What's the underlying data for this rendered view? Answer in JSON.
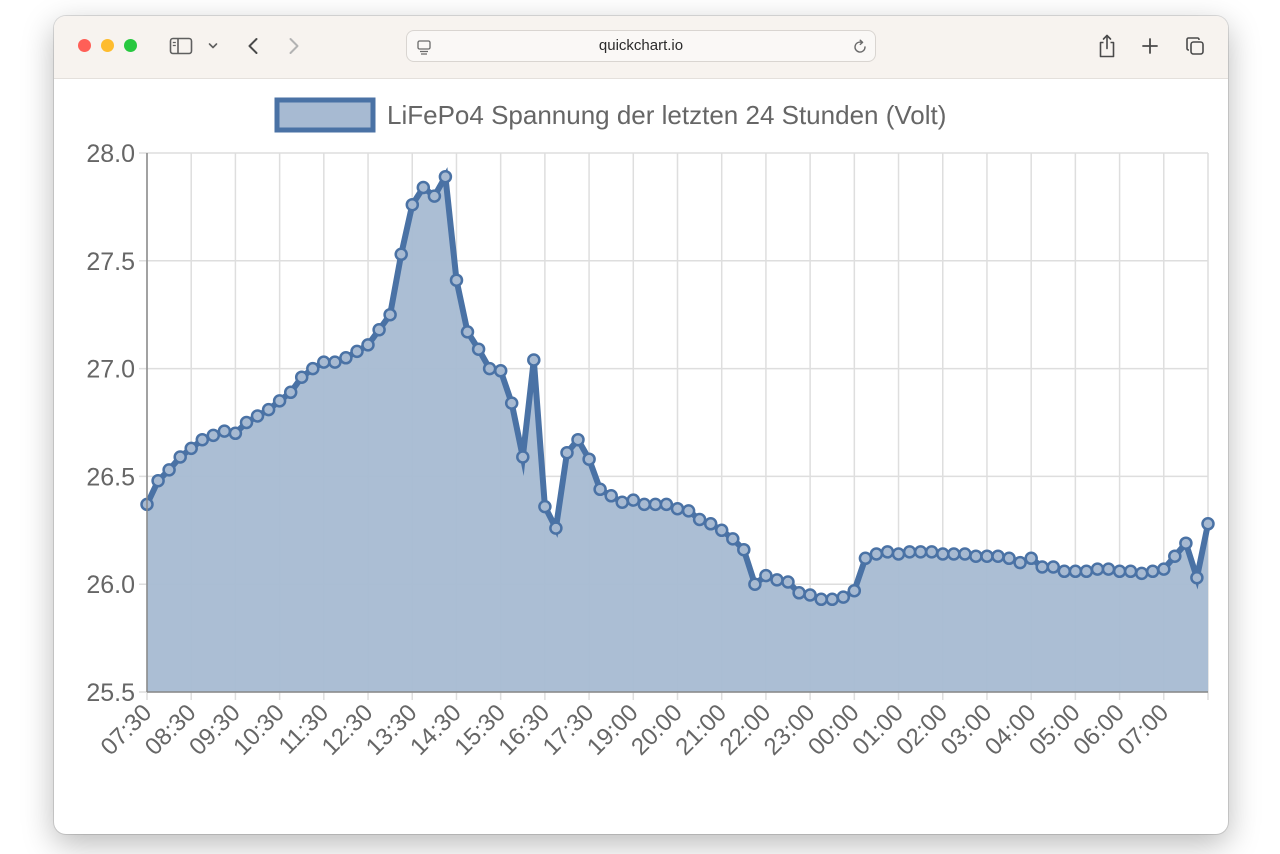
{
  "browser": {
    "url": "quickchart.io",
    "traffic_lights": {
      "close": "#ff5f57",
      "minimize": "#febc2e",
      "zoom": "#28c840"
    },
    "icons": [
      "sidebar-icon",
      "chevron-down-icon",
      "back-icon",
      "forward-icon",
      "reader-icon",
      "reload-icon",
      "share-icon",
      "new-tab-icon",
      "tab-overview-icon"
    ]
  },
  "colors": {
    "line": "#4a72a5",
    "fill": "#a7bad2",
    "grid": "#dedede",
    "axis": "#888888",
    "text": "#666666"
  },
  "chart_data": {
    "type": "area",
    "title": "",
    "legend": {
      "label": "LiFePo4 Spannung der letzten 24 Stunden (Volt)",
      "position": "top"
    },
    "xlabel": "",
    "ylabel": "",
    "ylim": [
      25.5,
      28.0
    ],
    "yticks": [
      "28.0",
      "27.5",
      "27.0",
      "26.5",
      "26.0",
      "25.5"
    ],
    "xticks": [
      "07:30",
      "08:30",
      "09:30",
      "10:30",
      "11:30",
      "12:30",
      "13:30",
      "14:30",
      "15:30",
      "16:30",
      "17:30",
      "19:00",
      "20:00",
      "21:00",
      "22:00",
      "23:00",
      "00:00",
      "01:00",
      "02:00",
      "03:00",
      "04:00",
      "05:00",
      "06:00",
      "07:00"
    ],
    "grid": true,
    "series": [
      {
        "name": "LiFePo4 Spannung der letzten 24 Stunden (Volt)",
        "values": [
          26.37,
          26.48,
          26.53,
          26.59,
          26.63,
          26.67,
          26.69,
          26.71,
          26.7,
          26.75,
          26.78,
          26.81,
          26.85,
          26.89,
          26.96,
          27.0,
          27.03,
          27.03,
          27.05,
          27.08,
          27.11,
          27.18,
          27.25,
          27.53,
          27.76,
          27.84,
          27.8,
          27.89,
          27.41,
          27.17,
          27.09,
          27.0,
          26.99,
          26.84,
          26.59,
          27.04,
          26.36,
          26.26,
          26.61,
          26.67,
          26.58,
          26.44,
          26.41,
          26.38,
          26.39,
          26.37,
          26.37,
          26.37,
          26.35,
          26.34,
          26.3,
          26.28,
          26.25,
          26.21,
          26.16,
          26.0,
          26.04,
          26.02,
          26.01,
          25.96,
          25.95,
          25.93,
          25.93,
          25.94,
          25.97,
          26.12,
          26.14,
          26.15,
          26.14,
          26.15,
          26.15,
          26.15,
          26.14,
          26.14,
          26.14,
          26.13,
          26.13,
          26.13,
          26.12,
          26.1,
          26.12,
          26.08,
          26.08,
          26.06,
          26.06,
          26.06,
          26.07,
          26.07,
          26.06,
          26.06,
          26.05,
          26.06,
          26.07,
          26.13,
          26.19,
          26.03,
          26.28
        ]
      }
    ]
  }
}
